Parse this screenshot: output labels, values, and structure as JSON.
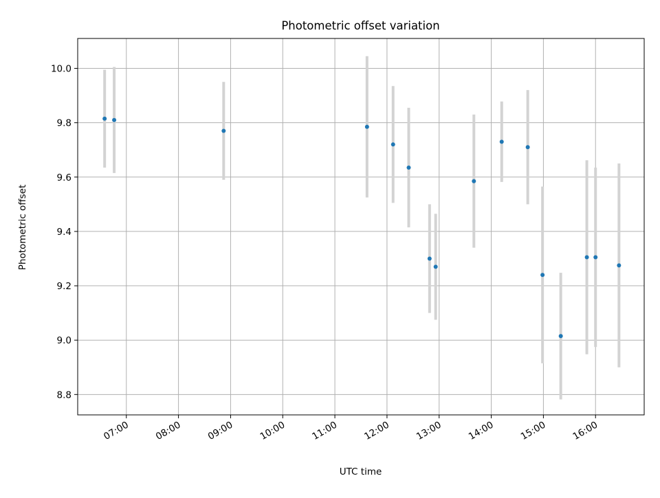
{
  "colors": {
    "marker": "#1f77b4",
    "errorbar": "#d3d3d3",
    "grid": "#b0b0b0",
    "axes": "#000000",
    "background": "#ffffff"
  },
  "chart_data": {
    "type": "scatter",
    "title": "Photometric offset variation",
    "xlabel": "UTC time",
    "ylabel": "Photometric offset",
    "x_format": "HH:MM",
    "xlim": [
      "06:04",
      "16:56"
    ],
    "ylim": [
      8.725,
      10.11
    ],
    "grid": true,
    "legend": null,
    "x_ticks": [
      "07:00",
      "08:00",
      "09:00",
      "10:00",
      "11:00",
      "12:00",
      "13:00",
      "14:00",
      "15:00",
      "16:00"
    ],
    "y_ticks": [
      "8.8",
      "9.0",
      "9.2",
      "9.4",
      "9.6",
      "9.8",
      "10.0"
    ],
    "points": [
      {
        "x": "06:35",
        "y": 9.815,
        "err": 0.18
      },
      {
        "x": "06:46",
        "y": 9.81,
        "err": 0.195
      },
      {
        "x": "08:52",
        "y": 9.77,
        "err": 0.18
      },
      {
        "x": "11:37",
        "y": 9.785,
        "err": 0.26
      },
      {
        "x": "12:07",
        "y": 9.72,
        "err": 0.215
      },
      {
        "x": "12:25",
        "y": 9.635,
        "err": 0.22
      },
      {
        "x": "12:49",
        "y": 9.3,
        "err": 0.2
      },
      {
        "x": "12:56",
        "y": 9.27,
        "err": 0.195
      },
      {
        "x": "13:40",
        "y": 9.585,
        "err": 0.245
      },
      {
        "x": "14:12",
        "y": 9.73,
        "err": 0.148
      },
      {
        "x": "14:42",
        "y": 9.71,
        "err": 0.21
      },
      {
        "x": "14:59",
        "y": 9.24,
        "err": 0.325
      },
      {
        "x": "15:20",
        "y": 9.015,
        "err": 0.233
      },
      {
        "x": "15:50",
        "y": 9.305,
        "err": 0.357
      },
      {
        "x": "16:00",
        "y": 9.305,
        "err": 0.33
      },
      {
        "x": "16:27",
        "y": 9.275,
        "err": 0.375
      }
    ]
  }
}
